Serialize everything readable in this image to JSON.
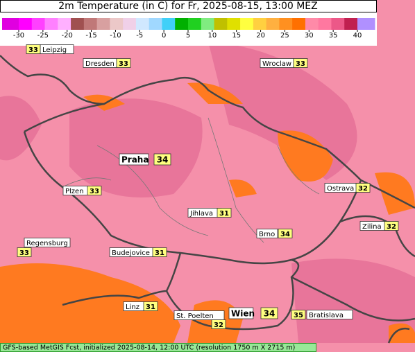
{
  "title": "2m Temperature (in C) for Fr, 2025-08-15, 13:00 MEZ",
  "legend": {
    "ticks": [
      -30,
      -25,
      -20,
      -15,
      -10,
      -5,
      0,
      5,
      10,
      15,
      20,
      25,
      30,
      35,
      40
    ],
    "colors": [
      "#e000e0",
      "#ff00ff",
      "#ff40ff",
      "#ff80ff",
      "#ffb0ff",
      "#a05050",
      "#c07878",
      "#d8a0a0",
      "#ecc8c8",
      "#f0d0e8",
      "#d0e8ff",
      "#a0d8ff",
      "#40d0f8",
      "#00b000",
      "#20d020",
      "#80ec80",
      "#c0c000",
      "#e0e000",
      "#ffff40",
      "#ffd040",
      "#ffb040",
      "#ff9020",
      "#ff7000",
      "#ff8aa8",
      "#ff78a0",
      "#ec5888",
      "#c02050",
      "#b090ff"
    ]
  },
  "cities": [
    {
      "name": "Leipzig",
      "temp": 33
    },
    {
      "name": "Dresden",
      "temp": 33
    },
    {
      "name": "Wroclaw",
      "temp": 33
    },
    {
      "name": "Praha",
      "temp": 34
    },
    {
      "name": "Plzen",
      "temp": 33
    },
    {
      "name": "Ostrava",
      "temp": 32
    },
    {
      "name": "Jihlava",
      "temp": 31
    },
    {
      "name": "Zilina",
      "temp": 32
    },
    {
      "name": "Brno",
      "temp": 34
    },
    {
      "name": "Regensburg",
      "temp": 33
    },
    {
      "name": "Budejovice",
      "temp": 31
    },
    {
      "name": "Linz",
      "temp": 31
    },
    {
      "name": "St. Poelten",
      "temp": 32
    },
    {
      "name": "Wien",
      "temp": 34
    },
    {
      "name": "Bratislava",
      "temp": 35
    }
  ],
  "footer": "GFS-based MetGIS Fcst, initialized 2025-08-14, 12:00 UTC  (resolution 1750 m X 2715 m)"
}
